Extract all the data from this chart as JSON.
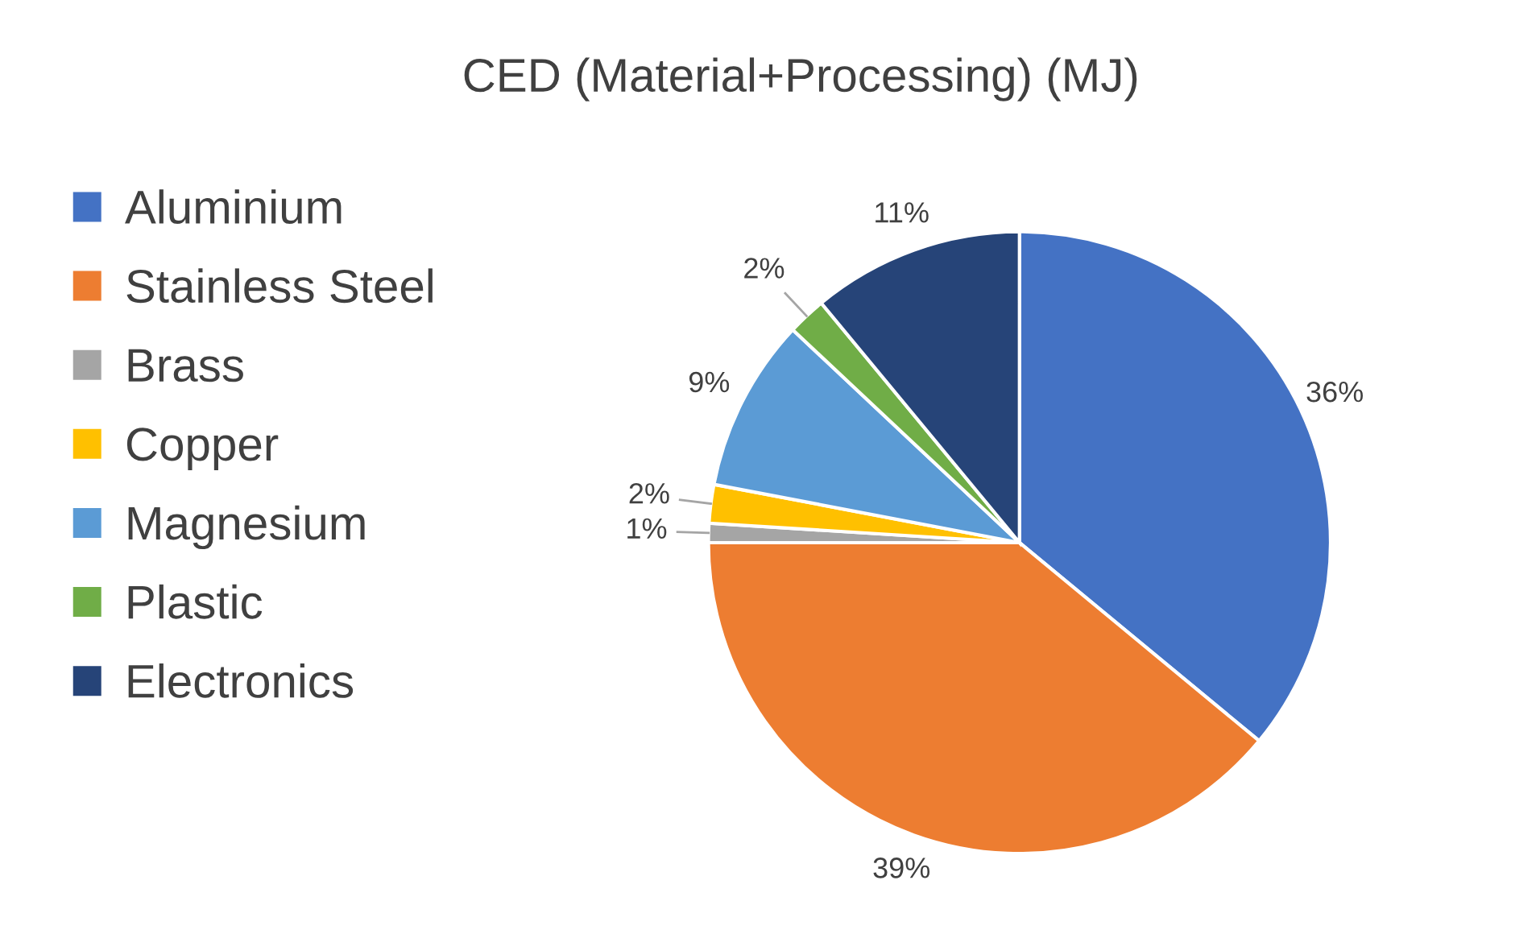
{
  "chart_data": {
    "type": "pie",
    "title": "CED (Material+Processing) (MJ)",
    "categories": [
      "Aluminium",
      "Stainless Steel",
      "Brass",
      "Copper",
      "Magnesium",
      "Plastic",
      "Electronics"
    ],
    "values": [
      36,
      39,
      1,
      2,
      9,
      2,
      11
    ],
    "value_labels": [
      "36%",
      "39%",
      "1%",
      "2%",
      "9%",
      "2%",
      "11%"
    ],
    "colors": [
      "#4472c4",
      "#ed7d31",
      "#a5a5a5",
      "#ffc000",
      "#5b9bd5",
      "#70ad47",
      "#264478"
    ],
    "legend": "left"
  }
}
